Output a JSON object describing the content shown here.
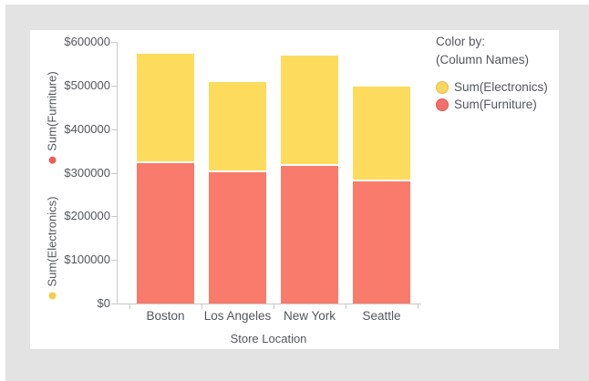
{
  "window": {
    "page_background": "#e3e3e3",
    "card_background": "#ffffff",
    "text_color": "#53565e",
    "axis_color": "#c8c8ce"
  },
  "chart_data": {
    "type": "bar",
    "stacked": true,
    "title": "",
    "categories": [
      "Boston",
      "Los Angeles",
      "New York",
      "Seattle"
    ],
    "series": [
      {
        "name": "Sum(Furniture)",
        "color": "#f97b6b",
        "values": [
          321000,
          302000,
          316000,
          281000
        ]
      },
      {
        "name": "Sum(Electronics)",
        "color": "#fddb5d",
        "values": [
          251000,
          207000,
          253000,
          217000
        ]
      }
    ],
    "totals": [
      572000,
      509000,
      569000,
      498000
    ],
    "xlabel": "Store Location",
    "ylabel": "",
    "ylim": [
      0,
      600000
    ],
    "y_tick_step": 100000,
    "y_ticks": [
      "$600000",
      "$500000",
      "$400000",
      "$300000",
      "$200000",
      "$100000",
      "$0"
    ],
    "grid": false,
    "legend_position": "right"
  },
  "y_axis_selectors": [
    {
      "label": "Sum(Furniture)",
      "dot_color": "#ec6054"
    },
    {
      "label": "Sum(Electronics)",
      "dot_color": "#f6cd4a"
    }
  ],
  "legend": {
    "title": "Color by:",
    "subtitle": "(Column Names)",
    "items": [
      {
        "label": "Sum(Electronics)",
        "fill": "#f8d75c",
        "border": "#dcbe4e"
      },
      {
        "label": "Sum(Furniture)",
        "fill": "#f2706a",
        "border": "#d95b51"
      }
    ]
  }
}
